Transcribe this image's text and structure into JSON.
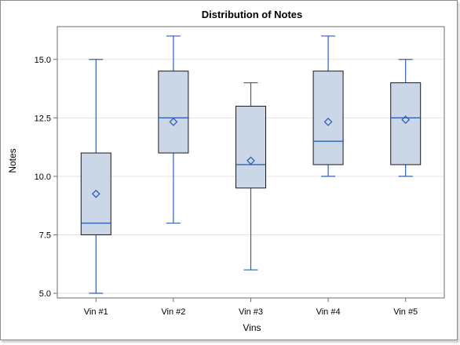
{
  "chart_data": {
    "type": "box",
    "title": "Distribution of Notes",
    "xlabel": "Vins",
    "ylabel": "Notes",
    "ylim": [
      4.8,
      16.4
    ],
    "yticks": [
      5.0,
      7.5,
      10.0,
      12.5,
      15.0
    ],
    "ytick_labels": [
      "5.0",
      "7.5",
      "10.0",
      "12.5",
      "15.0"
    ],
    "grid": true,
    "categories": [
      "Vin #1",
      "Vin #2",
      "Vin #3",
      "Vin #4",
      "Vin #5"
    ],
    "boxes": [
      {
        "category": "Vin #1",
        "min": 5,
        "q1": 7.5,
        "median": 8,
        "q3": 11,
        "max": 15,
        "mean": 9.25
      },
      {
        "category": "Vin #2",
        "min": 8,
        "q1": 11,
        "median": 12.5,
        "q3": 14.5,
        "max": 16,
        "mean": 12.33
      },
      {
        "category": "Vin #3",
        "min": 6,
        "q1": 9.5,
        "median": 10.5,
        "q3": 13,
        "max": 14,
        "mean": 10.67
      },
      {
        "category": "Vin #4",
        "min": 10,
        "q1": 10.5,
        "median": 11.5,
        "q3": 14.5,
        "max": 16,
        "mean": 12.33
      },
      {
        "category": "Vin #5",
        "min": 10,
        "q1": 10.5,
        "median": 12.5,
        "q3": 14,
        "max": 15,
        "mean": 12.42
      }
    ],
    "colors": {
      "box_fill": "#cbd6e6",
      "box_stroke": "#1a1a1a",
      "whisker": "#2f5fb8",
      "median": "#2f5fb8",
      "mean_marker": "#2f5fb8",
      "gridline": "#e3e3e3",
      "axis": "#6e6e6e"
    }
  }
}
